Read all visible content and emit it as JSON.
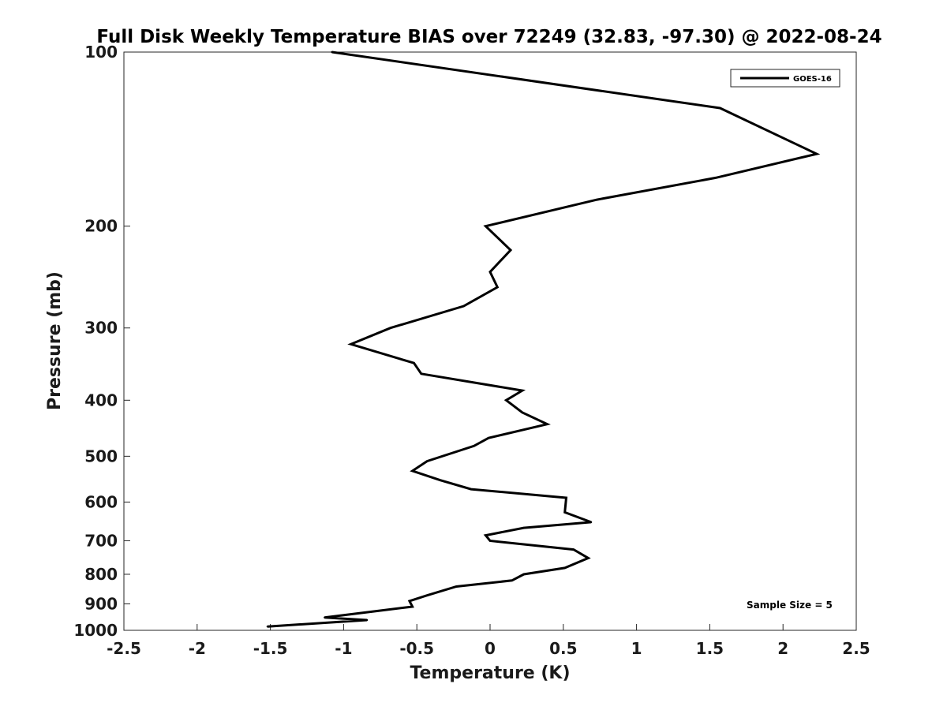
{
  "chart_data": {
    "type": "line",
    "title": "Full Disk Weekly Temperature BIAS over 72249 (32.83, -97.30) @ 2022-08-24",
    "xlabel": "Temperature (K)",
    "ylabel": "Pressure (mb)",
    "xlim": [
      -2.5,
      2.5
    ],
    "ylim": [
      1000,
      100
    ],
    "y_scale": "log",
    "y_reversed": true,
    "x_ticks": [
      -2.5,
      -2,
      -1.5,
      -1,
      -0.5,
      0,
      0.5,
      1,
      1.5,
      2,
      2.5
    ],
    "x_tick_labels": [
      "-2.5",
      "-2",
      "-1.5",
      "-1",
      "-0.5",
      "0",
      "0.5",
      "1",
      "1.5",
      "2",
      "2.5"
    ],
    "y_ticks": [
      100,
      200,
      300,
      400,
      500,
      600,
      700,
      800,
      900,
      1000
    ],
    "y_tick_labels": [
      "100",
      "200",
      "300",
      "400",
      "500",
      "600",
      "700",
      "800",
      "900",
      "1000"
    ],
    "grid": false,
    "legend_position": "top-right",
    "annotation": "Sample Size = 5",
    "series": [
      {
        "name": "GOES-16",
        "color": "#000000",
        "points": [
          {
            "x": -1.08,
            "y": 100
          },
          {
            "x": 1.57,
            "y": 125
          },
          {
            "x": 2.23,
            "y": 150
          },
          {
            "x": 1.54,
            "y": 165
          },
          {
            "x": 0.73,
            "y": 180
          },
          {
            "x": -0.03,
            "y": 200
          },
          {
            "x": 0.14,
            "y": 220
          },
          {
            "x": 0.0,
            "y": 240
          },
          {
            "x": 0.05,
            "y": 255
          },
          {
            "x": -0.18,
            "y": 275
          },
          {
            "x": -0.68,
            "y": 300
          },
          {
            "x": -0.95,
            "y": 320
          },
          {
            "x": -0.52,
            "y": 345
          },
          {
            "x": -0.47,
            "y": 360
          },
          {
            "x": 0.22,
            "y": 385
          },
          {
            "x": 0.11,
            "y": 400
          },
          {
            "x": 0.22,
            "y": 420
          },
          {
            "x": 0.39,
            "y": 440
          },
          {
            "x": -0.01,
            "y": 465
          },
          {
            "x": -0.11,
            "y": 480
          },
          {
            "x": -0.43,
            "y": 510
          },
          {
            "x": -0.53,
            "y": 530
          },
          {
            "x": -0.34,
            "y": 550
          },
          {
            "x": -0.13,
            "y": 570
          },
          {
            "x": 0.52,
            "y": 590
          },
          {
            "x": 0.51,
            "y": 625
          },
          {
            "x": 0.69,
            "y": 650
          },
          {
            "x": 0.23,
            "y": 665
          },
          {
            "x": -0.03,
            "y": 685
          },
          {
            "x": 0.0,
            "y": 700
          },
          {
            "x": 0.57,
            "y": 725
          },
          {
            "x": 0.67,
            "y": 750
          },
          {
            "x": 0.51,
            "y": 780
          },
          {
            "x": 0.23,
            "y": 800
          },
          {
            "x": 0.15,
            "y": 820
          },
          {
            "x": -0.23,
            "y": 840
          },
          {
            "x": -0.43,
            "y": 870
          },
          {
            "x": -0.55,
            "y": 890
          },
          {
            "x": -0.53,
            "y": 910
          },
          {
            "x": -0.76,
            "y": 925
          },
          {
            "x": -1.13,
            "y": 950
          },
          {
            "x": -0.84,
            "y": 960
          },
          {
            "x": -1.52,
            "y": 985
          }
        ]
      }
    ]
  }
}
